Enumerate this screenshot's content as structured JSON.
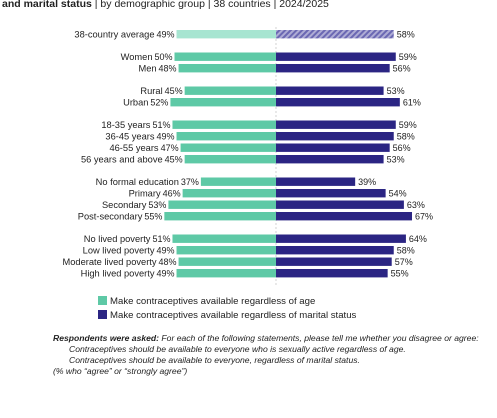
{
  "title": {
    "line1_bold": "and marital status",
    "line1_rest": " | by demographic group | 38 countries | 2024/2025"
  },
  "colors": {
    "age_series": "#5ec9a6",
    "marital_series": "#2b2583",
    "average_age": "#a7e5d1",
    "average_marital_stripe": "#6b68b3"
  },
  "chart_data": {
    "type": "bar",
    "orientation": "horizontal-diverging",
    "xlim": [
      0,
      100
    ],
    "groups": [
      {
        "name": "average",
        "categories": [
          "38-country average"
        ]
      },
      {
        "name": "gender",
        "categories": [
          "Women",
          "Men"
        ]
      },
      {
        "name": "location",
        "categories": [
          "Rural",
          "Urban"
        ]
      },
      {
        "name": "age",
        "categories": [
          "18-35 years",
          "36-45 years",
          "46-55 years",
          "56 years and above"
        ]
      },
      {
        "name": "education",
        "categories": [
          "No formal education",
          "Primary",
          "Secondary",
          "Post-secondary"
        ]
      },
      {
        "name": "lived_poverty",
        "categories": [
          "No lived poverty",
          "Low lived poverty",
          "Moderate lived poverty",
          "High lived poverty"
        ]
      }
    ],
    "series": [
      {
        "name": "Make contraceptives available regardless of age",
        "side": "left",
        "values": [
          49,
          50,
          48,
          45,
          52,
          51,
          49,
          47,
          45,
          37,
          46,
          53,
          55,
          51,
          49,
          48,
          49
        ]
      },
      {
        "name": "Make contraceptives available regardless of marital status",
        "side": "right",
        "values": [
          58,
          59,
          56,
          53,
          61,
          59,
          58,
          56,
          53,
          39,
          54,
          63,
          67,
          64,
          58,
          57,
          55
        ]
      }
    ],
    "value_suffix": "%"
  },
  "notes": {
    "asked_label": "Respondents were asked:",
    "asked_text": " For each of the following statements, please tell me whether you disagree or agree:",
    "statement1": "Contraceptives should be available to everyone who is sexually active regardless of age.",
    "statement2": "Contraceptives should be available to everyone, regardless of marital status.",
    "footnote": "(% who “agree” or “strongly agree”)"
  }
}
